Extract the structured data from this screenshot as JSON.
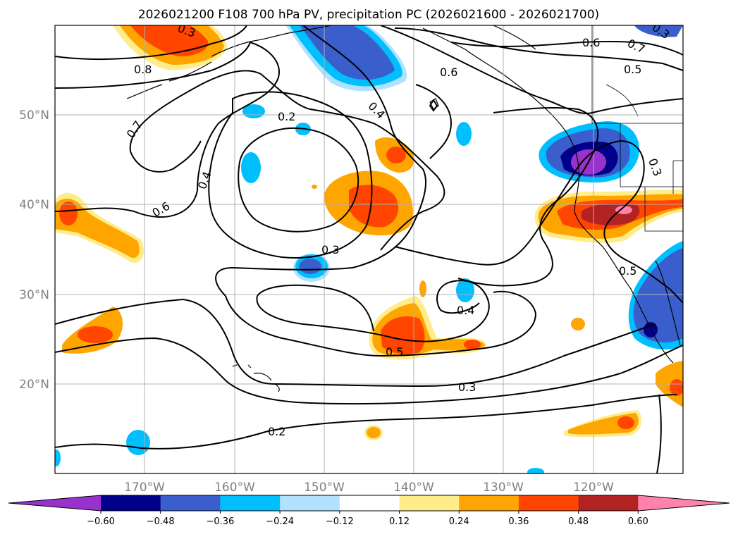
{
  "title": "2026021200 F108 700 hPa PV, precipitation PC (2026021600 - 2026021700)",
  "lat_labels": [
    "50°N",
    "40°N",
    "30°N",
    "20°N"
  ],
  "lon_labels": [
    "170°W",
    "160°W",
    "150°W",
    "140°W",
    "130°W",
    "120°W"
  ],
  "colorbar": {
    "colors": [
      "#9932cc",
      "#00008b",
      "#3a5fcd",
      "#00bfff",
      "#b0e2ff",
      "#ffffff",
      "#ffec8b",
      "#ffa500",
      "#ff4500",
      "#b22222",
      "#ff82ab"
    ],
    "tick_labels": [
      "−0.60",
      "−0.48",
      "−0.36",
      "−0.24",
      "−0.12",
      "0.12",
      "0.24",
      "0.36",
      "0.48",
      "0.60"
    ]
  },
  "contour_labels": [
    "0.8",
    "0.7",
    "0.6",
    "0.4",
    "0.2",
    "0.3",
    "0.4",
    "0.5",
    "0.3",
    "0.2",
    "0.6",
    "0.7",
    "0.5",
    "0.6",
    "0.3",
    "0.4",
    "0.5",
    "0.3",
    "0.3"
  ],
  "colors": {
    "background": "#ffffff",
    "grid": "#b0b0b0",
    "contour": "#000000"
  }
}
